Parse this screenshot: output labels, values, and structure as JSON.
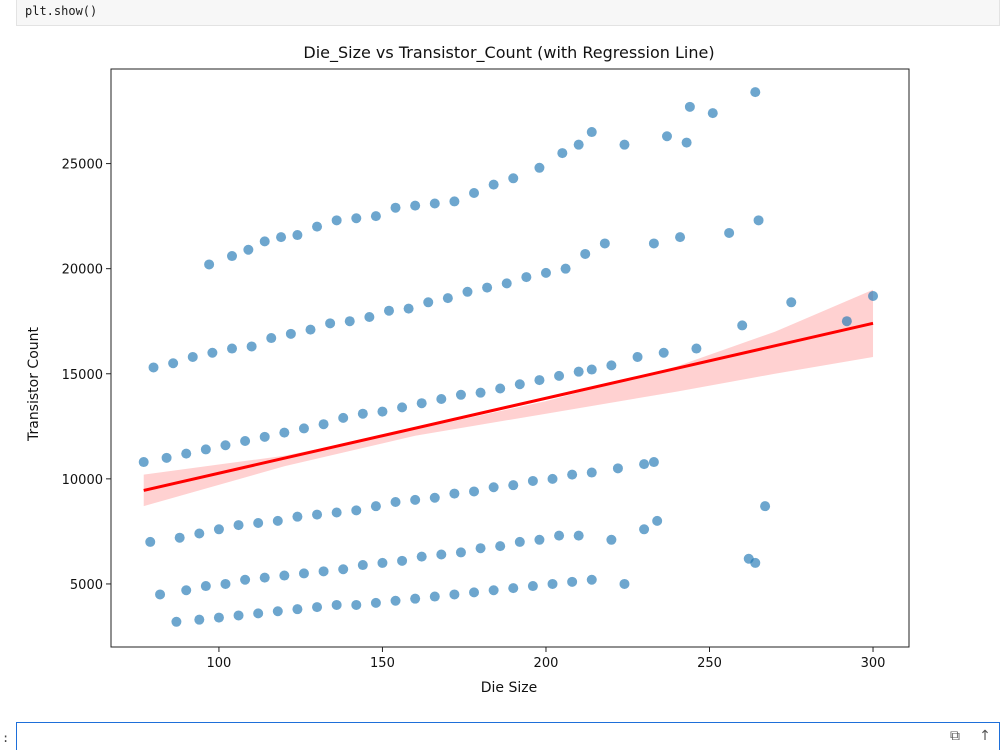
{
  "code": {
    "line": "plt.show()"
  },
  "next_cell": {
    "prompt": ":"
  },
  "colors": {
    "points": "#1f77b4",
    "regression": "#ff0000",
    "band": "#ff9a9a"
  },
  "icons": {
    "copy": "copy-icon",
    "move_up": "arrow-up-icon"
  },
  "chart_data": {
    "type": "scatter",
    "title": "Die_Size vs Transistor_Count (with Regression Line)",
    "xlabel": "Die Size",
    "ylabel": "Transistor Count",
    "xlim": [
      67,
      311
    ],
    "ylim": [
      2000,
      29500
    ],
    "xticks": [
      100,
      150,
      200,
      250,
      300
    ],
    "yticks": [
      5000,
      10000,
      15000,
      20000,
      25000
    ],
    "grid": false,
    "legend": "none",
    "regression": {
      "x": [
        77,
        300
      ],
      "y": [
        9450,
        17400
      ]
    },
    "confidence_band": {
      "x": [
        77,
        120,
        160,
        200,
        240,
        270,
        300
      ],
      "lower": [
        8700,
        10600,
        12050,
        13100,
        14150,
        15000,
        15800
      ],
      "upper": [
        10200,
        11100,
        12350,
        13700,
        15350,
        17000,
        19000
      ]
    },
    "clusters": [
      {
        "x": [
          97,
          104,
          109,
          114,
          119,
          124,
          130,
          136,
          142,
          148,
          154,
          160,
          166,
          172,
          178,
          184,
          190,
          198,
          205,
          210,
          214,
          224,
          237,
          243,
          244,
          251,
          264
        ],
        "y": [
          20200,
          20600,
          20900,
          21300,
          21500,
          21600,
          22000,
          22300,
          22400,
          22500,
          22900,
          23000,
          23100,
          23200,
          23600,
          24000,
          24300,
          24800,
          25500,
          25900,
          26500,
          25900,
          26300,
          26000,
          27700,
          27400,
          28400
        ]
      },
      {
        "x": [
          80,
          86,
          92,
          98,
          104,
          110,
          116,
          122,
          128,
          134,
          140,
          146,
          152,
          158,
          164,
          170,
          176,
          182,
          188,
          194,
          200,
          206,
          212,
          218,
          233,
          241,
          256,
          265
        ],
        "y": [
          15300,
          15500,
          15800,
          16000,
          16200,
          16300,
          16700,
          16900,
          17100,
          17400,
          17500,
          17700,
          18000,
          18100,
          18400,
          18600,
          18900,
          19100,
          19300,
          19600,
          19800,
          20000,
          20700,
          21200,
          21200,
          21500,
          21700,
          22300
        ]
      },
      {
        "x": [
          77,
          84,
          90,
          96,
          102,
          108,
          114,
          120,
          126,
          132,
          138,
          144,
          150,
          156,
          162,
          168,
          174,
          180,
          186,
          192,
          198,
          204,
          210,
          214,
          220,
          228,
          236,
          246,
          260,
          275,
          292,
          300
        ],
        "y": [
          10800,
          11000,
          11200,
          11400,
          11600,
          11800,
          12000,
          12200,
          12400,
          12600,
          12900,
          13100,
          13200,
          13400,
          13600,
          13800,
          14000,
          14100,
          14300,
          14500,
          14700,
          14900,
          15100,
          15200,
          15400,
          15800,
          16000,
          16200,
          17300,
          18400,
          17500,
          18700
        ]
      },
      {
        "x": [
          79,
          88,
          94,
          100,
          106,
          112,
          118,
          124,
          130,
          136,
          142,
          148,
          154,
          160,
          166,
          172,
          178,
          184,
          190,
          196,
          202,
          208,
          214,
          222,
          230,
          233,
          267
        ],
        "y": [
          7000,
          7200,
          7400,
          7600,
          7800,
          7900,
          8000,
          8200,
          8300,
          8400,
          8500,
          8700,
          8900,
          9000,
          9100,
          9300,
          9400,
          9600,
          9700,
          9900,
          10000,
          10200,
          10300,
          10500,
          10700,
          10800,
          8700
        ]
      },
      {
        "x": [
          82,
          90,
          96,
          102,
          108,
          114,
          120,
          126,
          132,
          138,
          144,
          150,
          156,
          162,
          168,
          174,
          180,
          186,
          192,
          198,
          204,
          210,
          220,
          230,
          234,
          262,
          264
        ],
        "y": [
          4500,
          4700,
          4900,
          5000,
          5200,
          5300,
          5400,
          5500,
          5600,
          5700,
          5900,
          6000,
          6100,
          6300,
          6400,
          6500,
          6700,
          6800,
          7000,
          7100,
          7300,
          7300,
          7100,
          7600,
          8000,
          6200,
          6000
        ]
      },
      {
        "x": [
          87,
          94,
          100,
          106,
          112,
          118,
          124,
          130,
          136,
          142,
          148,
          154,
          160,
          166,
          172,
          178,
          184,
          190,
          196,
          202,
          208,
          214,
          224
        ],
        "y": [
          3200,
          3300,
          3400,
          3500,
          3600,
          3700,
          3800,
          3900,
          4000,
          4000,
          4100,
          4200,
          4300,
          4400,
          4500,
          4600,
          4700,
          4800,
          4900,
          5000,
          5100,
          5200,
          5000
        ]
      }
    ]
  }
}
